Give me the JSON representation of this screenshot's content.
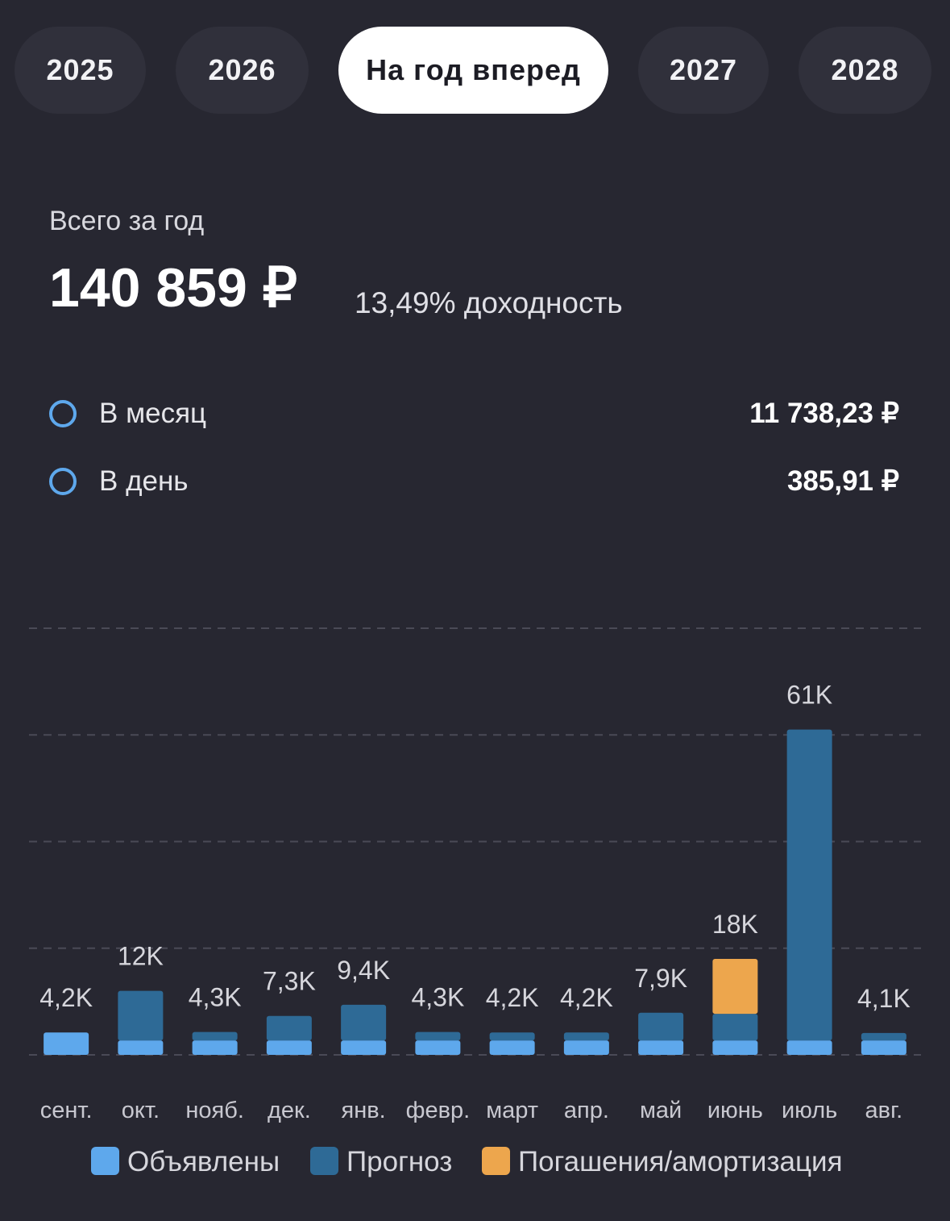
{
  "tabs": [
    "2025",
    "2026",
    "На год вперед",
    "2027",
    "2028"
  ],
  "active_tab": 2,
  "summary": {
    "caption": "Всего за год",
    "total": "140 859 ₽",
    "yield": "13,49% доходность",
    "rows": [
      {
        "label": "В месяц",
        "value": "11 738,23 ₽"
      },
      {
        "label": "В день",
        "value": "385,91 ₽"
      }
    ]
  },
  "chart_data": {
    "type": "stacked_bar",
    "categories": [
      "сент.",
      "окт.",
      "нояб.",
      "дек.",
      "янв.",
      "февр.",
      "март",
      "апр.",
      "май",
      "июнь",
      "июль",
      "авг."
    ],
    "series": [
      {
        "name": "Объявлены",
        "color": "#5ea8ec",
        "values": [
          4200,
          2700,
          2700,
          2700,
          2700,
          2700,
          2700,
          2700,
          2700,
          2700,
          2700,
          2700
        ]
      },
      {
        "name": "Прогноз",
        "color": "#2e6a96",
        "values": [
          0,
          9300,
          1600,
          4600,
          6700,
          1600,
          1500,
          1500,
          5200,
          5000,
          58300,
          1400
        ]
      },
      {
        "name": "Погашения/амортизация",
        "color": "#eda64d",
        "values": [
          0,
          0,
          0,
          0,
          0,
          0,
          0,
          0,
          0,
          10300,
          0,
          0
        ]
      }
    ],
    "totals": [
      4200,
      12000,
      4300,
      7300,
      9400,
      4300,
      4200,
      4200,
      7900,
      18000,
      61000,
      4100
    ],
    "total_labels": [
      "4,2K",
      "12K",
      "4,3K",
      "7,3K",
      "9,4K",
      "4,3K",
      "4,2K",
      "4,2K",
      "7,9K",
      "18K",
      "61K",
      "4,1K"
    ],
    "ylim": [
      0,
      80000
    ],
    "yticks": [
      0,
      20000,
      40000,
      60000,
      80000
    ],
    "grid": true
  }
}
